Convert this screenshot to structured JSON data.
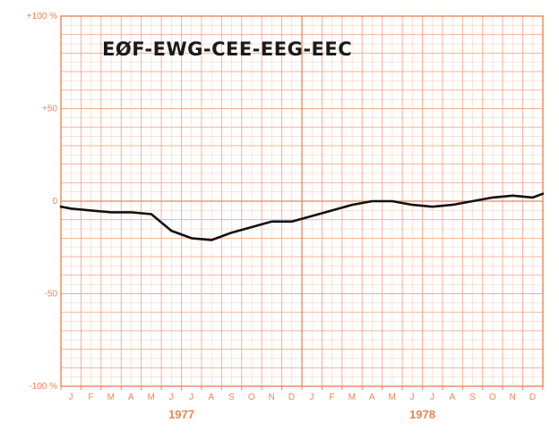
{
  "chart_data": {
    "type": "line",
    "title": "EØF-EWG-CEE-EEG-EEC",
    "xlabel": "",
    "ylabel": "",
    "ylim": [
      -100,
      100
    ],
    "y_ticks": [
      {
        "value": 100,
        "label": "+100 %"
      },
      {
        "value": 50,
        "label": "+50"
      },
      {
        "value": 0,
        "label": "0"
      },
      {
        "value": -50,
        "label": "-50"
      },
      {
        "value": -100,
        "label": "-100 %"
      }
    ],
    "x_tick_labels": [
      "J",
      "F",
      "M",
      "A",
      "M",
      "J",
      "J",
      "A",
      "S",
      "O",
      "N",
      "D",
      "J",
      "F",
      "M",
      "A",
      "M",
      "J",
      "J",
      "A",
      "S",
      "O",
      "N",
      "D"
    ],
    "years": [
      {
        "label": "1977",
        "month_start": 0,
        "month_end": 11
      },
      {
        "label": "1978",
        "month_start": 12,
        "month_end": 23
      }
    ],
    "grid": true,
    "colors": {
      "grid_major": "#f2a98a",
      "grid_minor": "#f8d2c2",
      "frame": "#e8875a",
      "line": "#111111"
    },
    "series": [
      {
        "x": [
          -0.5,
          0,
          1,
          2,
          3,
          4,
          5,
          6,
          7,
          8,
          9,
          10,
          11,
          12,
          13,
          14,
          15,
          16,
          17,
          18,
          19,
          20,
          21,
          22,
          23,
          23.5
        ],
        "values": [
          -3,
          -4,
          -5,
          -6,
          -6,
          -7,
          -16,
          -20,
          -21,
          -17,
          -14,
          -11,
          -11,
          -8,
          -5,
          -2,
          0,
          0,
          -2,
          -3,
          -2,
          0,
          2,
          3,
          2,
          4
        ]
      }
    ]
  }
}
